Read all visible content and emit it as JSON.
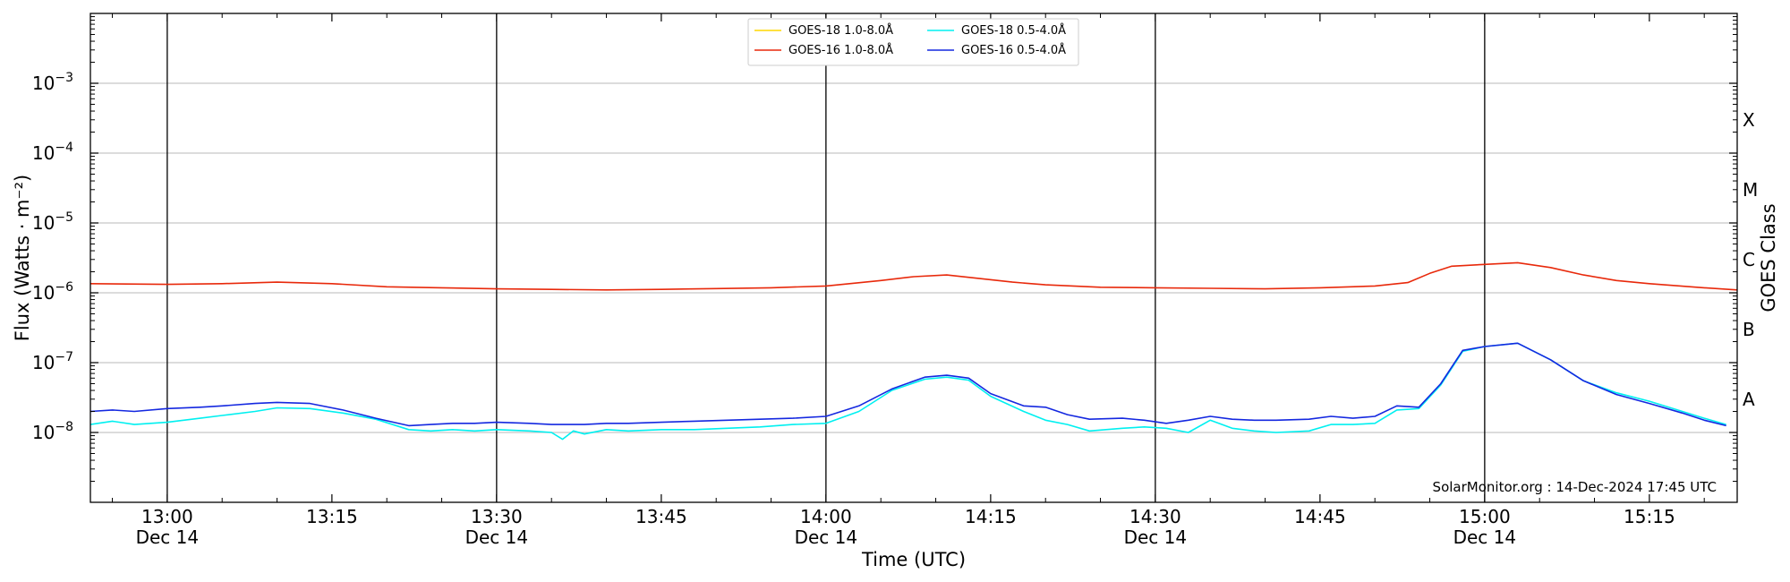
{
  "chart_data": {
    "type": "line",
    "title": "",
    "xlabel": "Time (UTC)",
    "ylabel": "Flux (Watts · m⁻²)",
    "y2label": "GOES Class",
    "yscale": "log",
    "ylim": [
      1e-09,
      0.01
    ],
    "xlim": [
      "12:53",
      "15:23"
    ],
    "grid": "horizontal",
    "legend_position": "top-center",
    "credit": "SolarMonitor.org : 14-Dec-2024 17:45 UTC",
    "x_ticks": [
      {
        "t": "13:00",
        "label": "13:00",
        "sublabel": "Dec 14"
      },
      {
        "t": "13:15",
        "label": "13:15",
        "sublabel": ""
      },
      {
        "t": "13:30",
        "label": "13:30",
        "sublabel": "Dec 14"
      },
      {
        "t": "13:45",
        "label": "13:45",
        "sublabel": ""
      },
      {
        "t": "14:00",
        "label": "14:00",
        "sublabel": "Dec 14"
      },
      {
        "t": "14:15",
        "label": "14:15",
        "sublabel": ""
      },
      {
        "t": "14:30",
        "label": "14:30",
        "sublabel": "Dec 14"
      },
      {
        "t": "14:45",
        "label": "14:45",
        "sublabel": ""
      },
      {
        "t": "15:00",
        "label": "15:00",
        "sublabel": "Dec 14"
      },
      {
        "t": "15:15",
        "label": "15:15",
        "sublabel": ""
      }
    ],
    "day_markers": [
      "13:00",
      "13:30",
      "14:00",
      "14:30",
      "15:00"
    ],
    "y_ticks": [
      {
        "value": 1e-08,
        "exp": "−8"
      },
      {
        "value": 1e-07,
        "exp": "−7"
      },
      {
        "value": 1e-06,
        "exp": "−6"
      },
      {
        "value": 1e-05,
        "exp": "−5"
      },
      {
        "value": 0.0001,
        "exp": "−4"
      },
      {
        "value": 0.001,
        "exp": "−3"
      }
    ],
    "goes_classes": [
      {
        "label": "A",
        "value": 3e-08
      },
      {
        "label": "B",
        "value": 3e-07
      },
      {
        "label": "C",
        "value": 3e-06
      },
      {
        "label": "M",
        "value": 3e-05
      },
      {
        "label": "X",
        "value": 0.0003
      }
    ],
    "series": [
      {
        "name": "GOES-18 1.0-8.0Å",
        "color": "#ffd700",
        "x": [],
        "values": []
      },
      {
        "name": "GOES-16 1.0-8.0Å",
        "color": "#e8290b",
        "x": [
          "12:53",
          "13:00",
          "13:05",
          "13:10",
          "13:15",
          "13:20",
          "13:25",
          "13:30",
          "13:35",
          "13:40",
          "13:45",
          "13:50",
          "13:55",
          "14:00",
          "14:05",
          "14:08",
          "14:11",
          "14:14",
          "14:17",
          "14:20",
          "14:25",
          "14:30",
          "14:35",
          "14:40",
          "14:45",
          "14:50",
          "14:53",
          "14:55",
          "14:57",
          "15:00",
          "15:03",
          "15:06",
          "15:09",
          "15:12",
          "15:15",
          "15:20",
          "15:23"
        ],
        "values": [
          1.35e-06,
          1.32e-06,
          1.35e-06,
          1.42e-06,
          1.35e-06,
          1.22e-06,
          1.18e-06,
          1.14e-06,
          1.12e-06,
          1.1e-06,
          1.12e-06,
          1.15e-06,
          1.18e-06,
          1.25e-06,
          1.5e-06,
          1.7e-06,
          1.8e-06,
          1.6e-06,
          1.42e-06,
          1.3e-06,
          1.2e-06,
          1.18e-06,
          1.16e-06,
          1.14e-06,
          1.18e-06,
          1.25e-06,
          1.4e-06,
          1.9e-06,
          2.4e-06,
          2.55e-06,
          2.7e-06,
          2.3e-06,
          1.8e-06,
          1.5e-06,
          1.35e-06,
          1.18e-06,
          1.1e-06
        ]
      },
      {
        "name": "GOES-18 0.5-4.0Å",
        "color": "#00f0f0",
        "x": [
          "12:53",
          "12:55",
          "12:57",
          "13:00",
          "13:03",
          "13:05",
          "13:08",
          "13:10",
          "13:13",
          "13:16",
          "13:19",
          "13:22",
          "13:24",
          "13:26",
          "13:28",
          "13:30",
          "13:33",
          "13:35",
          "13:36",
          "13:37",
          "13:38",
          "13:40",
          "13:42",
          "13:45",
          "13:48",
          "13:51",
          "13:54",
          "13:57",
          "14:00",
          "14:03",
          "14:06",
          "14:09",
          "14:11",
          "14:13",
          "14:15",
          "14:18",
          "14:20",
          "14:22",
          "14:24",
          "14:27",
          "14:29",
          "14:31",
          "14:33",
          "14:35",
          "14:37",
          "14:39",
          "14:41",
          "14:44",
          "14:46",
          "14:48",
          "14:50",
          "14:52",
          "14:54",
          "14:56",
          "14:58",
          "15:00",
          "15:03",
          "15:06",
          "15:09",
          "15:12",
          "15:15",
          "15:18",
          "15:20",
          "15:22"
        ],
        "values": [
          1.3e-08,
          1.45e-08,
          1.3e-08,
          1.4e-08,
          1.6e-08,
          1.75e-08,
          2e-08,
          2.25e-08,
          2.2e-08,
          1.9e-08,
          1.55e-08,
          1.1e-08,
          1.05e-08,
          1.1e-08,
          1.05e-08,
          1.1e-08,
          1.05e-08,
          1e-08,
          8e-09,
          1.05e-08,
          9.5e-09,
          1.1e-08,
          1.05e-08,
          1.1e-08,
          1.1e-08,
          1.15e-08,
          1.2e-08,
          1.3e-08,
          1.35e-08,
          2e-08,
          4e-08,
          5.8e-08,
          6.2e-08,
          5.6e-08,
          3.3e-08,
          2e-08,
          1.5e-08,
          1.3e-08,
          1.05e-08,
          1.15e-08,
          1.2e-08,
          1.15e-08,
          1e-08,
          1.5e-08,
          1.15e-08,
          1.05e-08,
          1e-08,
          1.05e-08,
          1.3e-08,
          1.3e-08,
          1.35e-08,
          2.1e-08,
          2.2e-08,
          4.8e-08,
          1.45e-07,
          1.7e-07,
          1.9e-07,
          1.1e-07,
          5.5e-08,
          3.7e-08,
          2.8e-08,
          2e-08,
          1.6e-08,
          1.3e-08
        ]
      },
      {
        "name": "GOES-16 0.5-4.0Å",
        "color": "#1428e0",
        "x": [
          "12:53",
          "12:55",
          "12:57",
          "13:00",
          "13:03",
          "13:05",
          "13:08",
          "13:10",
          "13:13",
          "13:16",
          "13:19",
          "13:22",
          "13:24",
          "13:26",
          "13:28",
          "13:30",
          "13:33",
          "13:35",
          "13:38",
          "13:40",
          "13:42",
          "13:45",
          "13:48",
          "13:51",
          "13:54",
          "13:57",
          "14:00",
          "14:03",
          "14:06",
          "14:09",
          "14:11",
          "14:13",
          "14:15",
          "14:18",
          "14:20",
          "14:22",
          "14:24",
          "14:27",
          "14:29",
          "14:31",
          "14:33",
          "14:35",
          "14:37",
          "14:39",
          "14:41",
          "14:44",
          "14:46",
          "14:48",
          "14:50",
          "14:52",
          "14:54",
          "14:56",
          "14:58",
          "15:00",
          "15:03",
          "15:06",
          "15:09",
          "15:12",
          "15:15",
          "15:18",
          "15:20",
          "15:22"
        ],
        "values": [
          2e-08,
          2.1e-08,
          2e-08,
          2.2e-08,
          2.3e-08,
          2.4e-08,
          2.6e-08,
          2.7e-08,
          2.6e-08,
          2.1e-08,
          1.6e-08,
          1.25e-08,
          1.3e-08,
          1.35e-08,
          1.35e-08,
          1.4e-08,
          1.35e-08,
          1.3e-08,
          1.3e-08,
          1.35e-08,
          1.35e-08,
          1.4e-08,
          1.45e-08,
          1.5e-08,
          1.55e-08,
          1.6e-08,
          1.7e-08,
          2.4e-08,
          4.2e-08,
          6.2e-08,
          6.6e-08,
          6e-08,
          3.6e-08,
          2.4e-08,
          2.3e-08,
          1.8e-08,
          1.55e-08,
          1.6e-08,
          1.5e-08,
          1.35e-08,
          1.5e-08,
          1.7e-08,
          1.55e-08,
          1.5e-08,
          1.5e-08,
          1.55e-08,
          1.7e-08,
          1.6e-08,
          1.7e-08,
          2.4e-08,
          2.3e-08,
          5e-08,
          1.5e-07,
          1.7e-07,
          1.9e-07,
          1.1e-07,
          5.5e-08,
          3.5e-08,
          2.6e-08,
          1.9e-08,
          1.5e-08,
          1.25e-08
        ]
      }
    ]
  }
}
